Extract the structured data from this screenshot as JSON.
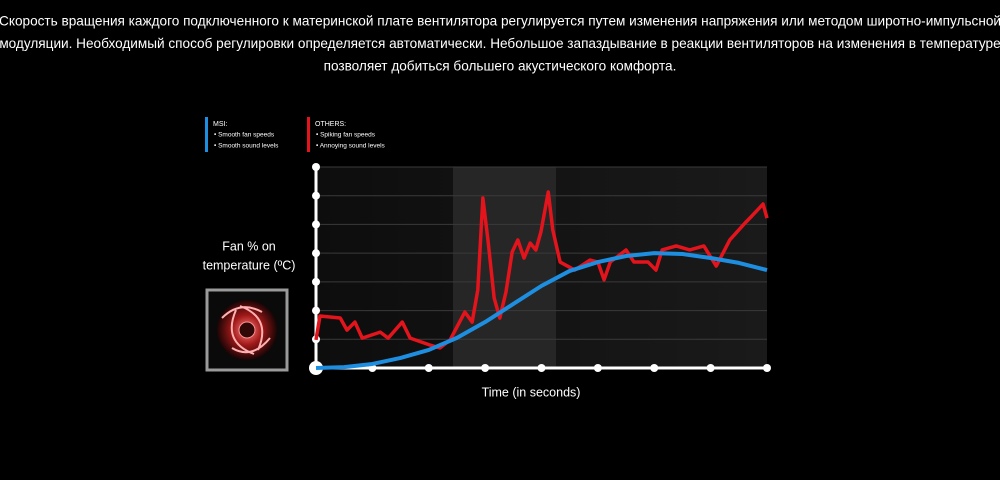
{
  "description": [
    "Скорость вращения каждого подключенного к материнской плате вентилятора регулируется путем изменения напряжения или методом широтно-импульсной",
    "модуляции. Необходимый способ регулировки определяется автоматически. Небольшое запаздывание в реакции вентиляторов на изменения в температуре",
    "позволяет добиться большего акустического комфорта."
  ],
  "chart_data": {
    "type": "line",
    "y_label": [
      "Fan % on",
      "temperature (ºC)"
    ],
    "x_label": "Time (in seconds)",
    "xlim": [
      0,
      8
    ],
    "ylim": [
      0,
      7
    ],
    "xticks": [
      0,
      1,
      2,
      3,
      4,
      5,
      6,
      7,
      8
    ],
    "yticks": [
      0,
      1,
      2,
      3,
      4,
      5,
      6,
      7
    ],
    "grid": true,
    "series": [
      {
        "name": "MSI:",
        "notes": [
          "• Smooth fan speeds",
          "• Smooth sound levels"
        ],
        "color": "#1e8fe0",
        "x": [
          0,
          0.5,
          1,
          1.5,
          2,
          2.5,
          3,
          3.5,
          4,
          4.5,
          5,
          5.5,
          6,
          6.5,
          7,
          7.5,
          8
        ],
        "values": [
          0,
          0.03,
          0.14,
          0.35,
          0.63,
          1.05,
          1.6,
          2.23,
          2.86,
          3.38,
          3.69,
          3.9,
          4.0,
          3.97,
          3.83,
          3.66,
          3.41
        ]
      },
      {
        "name": "OTHERS:",
        "notes": [
          "• Spiking fan speeds",
          "• Annoying sound levels"
        ],
        "color": "#e3141c",
        "x": [
          0,
          0.07,
          0.43,
          0.55,
          0.69,
          0.82,
          1.14,
          1.28,
          1.53,
          1.67,
          2.02,
          2.2,
          2.38,
          2.64,
          2.77,
          2.87,
          2.96,
          3.05,
          3.16,
          3.26,
          3.37,
          3.48,
          3.58,
          3.69,
          3.8,
          3.9,
          3.99,
          4.12,
          4.2,
          4.33,
          4.59,
          4.86,
          5.0,
          5.11,
          5.22,
          5.5,
          5.64,
          5.89,
          6.03,
          6.14,
          6.39,
          6.63,
          6.88,
          7.1,
          7.34,
          7.63,
          7.73,
          7.93,
          8.0
        ],
        "values": [
          0.98,
          1.81,
          1.74,
          1.32,
          1.6,
          1.04,
          1.25,
          1.04,
          1.6,
          1.04,
          0.8,
          0.7,
          0.98,
          1.95,
          1.6,
          2.72,
          5.92,
          4.46,
          2.44,
          1.74,
          2.65,
          4.04,
          4.46,
          3.83,
          4.35,
          4.11,
          4.74,
          6.13,
          4.81,
          3.69,
          3.41,
          3.76,
          3.69,
          3.07,
          3.69,
          4.11,
          3.69,
          3.69,
          3.41,
          4.11,
          4.25,
          4.11,
          4.25,
          3.55,
          4.46,
          5.09,
          5.29,
          5.71,
          5.22
        ]
      }
    ]
  }
}
